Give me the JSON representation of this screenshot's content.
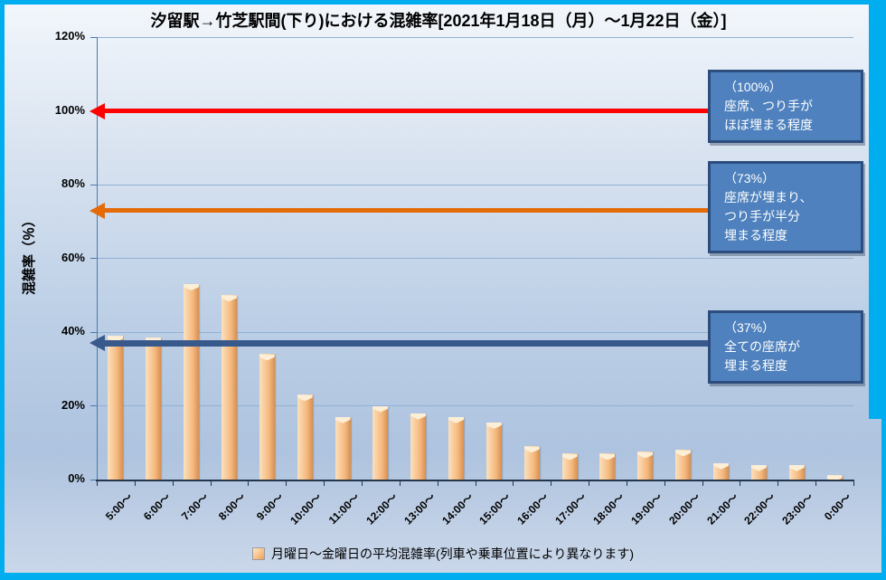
{
  "title": "汐留駅→竹芝駅間(下り)における混雑率[2021年1月18日（月）～1月22日（金）]",
  "chart_data": {
    "type": "bar",
    "title": "汐留駅→竹芝駅間(下り)における混雑率[2021年1月18日（月）～1月22日（金）]",
    "categories": [
      "5:00～",
      "6:00～",
      "7:00～",
      "8:00～",
      "9:00～",
      "10:00～",
      "11:00～",
      "12:00～",
      "13:00～",
      "14:00～",
      "15:00～",
      "16:00～",
      "17:00～",
      "18:00～",
      "19:00～",
      "20:00～",
      "21:00～",
      "22:00～",
      "23:00～",
      "0:00～"
    ],
    "values": [
      39,
      38.5,
      53,
      50,
      34,
      23,
      17,
      20,
      18,
      17,
      15.5,
      9,
      7,
      7,
      7.5,
      8,
      4.5,
      4,
      4,
      1.2
    ],
    "series_name": "月曜日～金曜日の平均混雑率(列車や乗車位置により異なります)",
    "xlabel": "",
    "ylabel": "混雑率（％）",
    "ylim": [
      0,
      120
    ],
    "ytick_step": 20,
    "ytick_suffix": "%",
    "grid": true,
    "legend_position": "bottom",
    "bar_color": "#F7BE8C",
    "annotations": [
      {
        "value": 100,
        "arrow_color": "#FF0000",
        "text": "（100%）\n座席、つり手が\nほぼ埋まる程度"
      },
      {
        "value": 73,
        "arrow_color": "#E56B09",
        "text": "（73%）\n座席が埋まり、\nつり手が半分\n埋まる程度"
      },
      {
        "value": 37,
        "arrow_color": "#38598C",
        "text": "（37%）\n全ての座席が\n埋まる程度"
      }
    ]
  },
  "legend": {
    "label": "月曜日～金曜日の平均混雑率(列車や乗車位置により異なります)"
  },
  "colors": {
    "frame": "#00AEEF",
    "grid": "#93B1D4",
    "x_axis": "#22364E",
    "y_axis": "#4C79AC",
    "callout_bg": "#4E81BD",
    "callout_border": "#2C4D7E",
    "bar_fill": "#F7BE8C"
  }
}
